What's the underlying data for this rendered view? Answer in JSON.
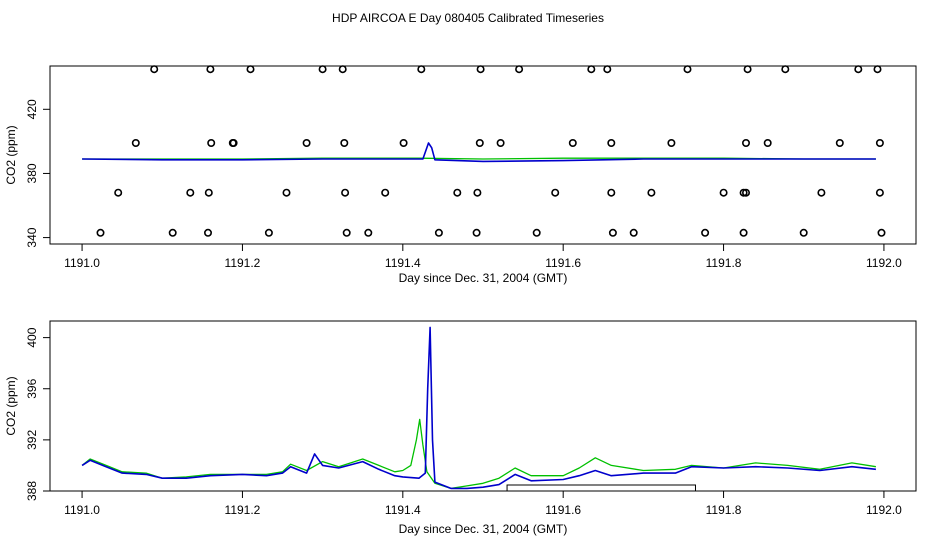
{
  "title": "HDP AIRCOA E  Day 080405  Calibrated Timeseries",
  "colors": {
    "green": "#00c000",
    "blue": "#0000cc",
    "axis": "#000000"
  },
  "chart_data": [
    {
      "type": "line",
      "xlabel": "Day since Dec. 31, 2004 (GMT)",
      "ylabel": "CO2 (ppm)",
      "xlim": [
        1190.96,
        1192.04
      ],
      "ylim": [
        336,
        447
      ],
      "xticks": [
        1191.0,
        1191.2,
        1191.4,
        1191.6,
        1191.8,
        1192.0
      ],
      "xtick_labels": [
        "1191.0",
        "1191.2",
        "1191.4",
        "1191.6",
        "1191.8",
        "1192.0"
      ],
      "yticks": [
        340,
        380,
        420
      ],
      "ytick_labels": [
        "340",
        "380",
        "420"
      ],
      "grid": false,
      "series": [
        {
          "color": "#00c000",
          "x": [
            1191.0,
            1191.1,
            1191.2,
            1191.3,
            1191.4,
            1191.42,
            1191.5,
            1191.6,
            1191.7,
            1191.8,
            1191.9,
            1191.99
          ],
          "y": [
            389,
            389,
            389,
            389.5,
            389.5,
            389.5,
            389,
            389.5,
            389.5,
            389.5,
            389,
            389
          ]
        },
        {
          "color": "#0000cc",
          "x": [
            1191.0,
            1191.1,
            1191.2,
            1191.3,
            1191.4,
            1191.425,
            1191.432,
            1191.436,
            1191.44,
            1191.5,
            1191.6,
            1191.7,
            1191.8,
            1191.9,
            1191.99
          ],
          "y": [
            389,
            388.5,
            388.5,
            389,
            389,
            389,
            399,
            396,
            388.5,
            387.5,
            388,
            389,
            389,
            389,
            389
          ]
        }
      ],
      "markers": {
        "x": [
          1191.09,
          1191.16,
          1191.21,
          1191.3,
          1191.325,
          1191.423,
          1191.497,
          1191.545,
          1191.635,
          1191.655,
          1191.755,
          1191.83,
          1191.877,
          1191.968,
          1191.992,
          1191.067,
          1191.161,
          1191.188,
          1191.189,
          1191.28,
          1191.327,
          1191.401,
          1191.496,
          1191.522,
          1191.612,
          1191.66,
          1191.735,
          1191.828,
          1191.855,
          1191.945,
          1191.995,
          1191.045,
          1191.135,
          1191.158,
          1191.255,
          1191.328,
          1191.378,
          1191.468,
          1191.493,
          1191.59,
          1191.66,
          1191.71,
          1191.8,
          1191.825,
          1191.828,
          1191.922,
          1191.995,
          1191.023,
          1191.113,
          1191.157,
          1191.233,
          1191.33,
          1191.357,
          1191.445,
          1191.492,
          1191.567,
          1191.662,
          1191.688,
          1191.777,
          1191.825,
          1191.9,
          1191.997
        ],
        "y": [
          445,
          445,
          445,
          445,
          445,
          445,
          445,
          445,
          445,
          445,
          445,
          445,
          445,
          445,
          445,
          399,
          399,
          399,
          399,
          399,
          399,
          399,
          399,
          399,
          399,
          399,
          399,
          399,
          399,
          399,
          399,
          368,
          368,
          368,
          368,
          368,
          368,
          368,
          368,
          368,
          368,
          368,
          368,
          368,
          368,
          368,
          368,
          343,
          343,
          343,
          343,
          343,
          343,
          343,
          343,
          343,
          343,
          343,
          343,
          343,
          343,
          343
        ]
      }
    },
    {
      "type": "line",
      "xlabel": "Day since Dec. 31, 2004 (GMT)",
      "ylabel": "CO2 (ppm)",
      "xlim": [
        1190.96,
        1192.04
      ],
      "ylim": [
        388,
        401.3
      ],
      "xticks": [
        1191.0,
        1191.2,
        1191.4,
        1191.6,
        1191.8,
        1192.0
      ],
      "xtick_labels": [
        "1191.0",
        "1191.2",
        "1191.4",
        "1191.6",
        "1191.8",
        "1192.0"
      ],
      "yticks": [
        388,
        392,
        396,
        400
      ],
      "ytick_labels": [
        "388",
        "392",
        "396",
        "400"
      ],
      "grid": false,
      "series": [
        {
          "color": "#00c000",
          "x": [
            1191.0,
            1191.01,
            1191.03,
            1191.05,
            1191.08,
            1191.1,
            1191.13,
            1191.16,
            1191.2,
            1191.23,
            1191.25,
            1191.26,
            1191.28,
            1191.3,
            1191.32,
            1191.35,
            1191.37,
            1191.39,
            1191.4,
            1191.41,
            1191.417,
            1191.421,
            1191.425,
            1191.43,
            1191.44,
            1191.46,
            1191.48,
            1191.5,
            1191.52,
            1191.54,
            1191.56,
            1191.6,
            1191.62,
            1191.64,
            1191.66,
            1191.7,
            1191.74,
            1191.76,
            1191.8,
            1191.84,
            1191.88,
            1191.92,
            1191.96,
            1191.99
          ],
          "y": [
            390.0,
            390.5,
            390.0,
            389.5,
            389.4,
            389.0,
            389.1,
            389.3,
            389.3,
            389.3,
            389.5,
            390.1,
            389.6,
            390.3,
            389.9,
            390.5,
            390.0,
            389.5,
            389.6,
            390.0,
            392.0,
            393.6,
            391.6,
            389.5,
            388.6,
            388.2,
            388.4,
            388.6,
            389.0,
            389.8,
            389.2,
            389.2,
            389.8,
            390.6,
            390.0,
            389.6,
            389.7,
            390.0,
            389.8,
            390.2,
            390.0,
            389.7,
            390.2,
            389.9
          ]
        },
        {
          "color": "#0000cc",
          "x": [
            1191.0,
            1191.01,
            1191.03,
            1191.05,
            1191.08,
            1191.1,
            1191.13,
            1191.16,
            1191.2,
            1191.23,
            1191.25,
            1191.26,
            1191.28,
            1191.29,
            1191.3,
            1191.32,
            1191.35,
            1191.37,
            1191.39,
            1191.4,
            1191.42,
            1191.428,
            1191.431,
            1191.434,
            1191.437,
            1191.44,
            1191.46,
            1191.48,
            1191.5,
            1191.52,
            1191.54,
            1191.56,
            1191.6,
            1191.62,
            1191.64,
            1191.66,
            1191.7,
            1191.74,
            1191.76,
            1191.8,
            1191.84,
            1191.88,
            1191.92,
            1191.96,
            1191.99
          ],
          "y": [
            390.0,
            390.4,
            389.9,
            389.4,
            389.3,
            389.0,
            389.0,
            389.2,
            389.3,
            389.2,
            389.4,
            389.9,
            389.4,
            390.9,
            390.0,
            389.8,
            390.3,
            389.7,
            389.2,
            389.1,
            389.0,
            389.4,
            396.0,
            400.8,
            392.0,
            388.7,
            388.2,
            388.2,
            388.3,
            388.5,
            389.3,
            388.8,
            388.9,
            389.2,
            389.6,
            389.2,
            389.4,
            389.4,
            389.9,
            389.8,
            389.9,
            389.8,
            389.6,
            389.9,
            389.7
          ]
        }
      ],
      "bracket": {
        "x": [
          1191.53,
          1191.765
        ]
      }
    }
  ]
}
